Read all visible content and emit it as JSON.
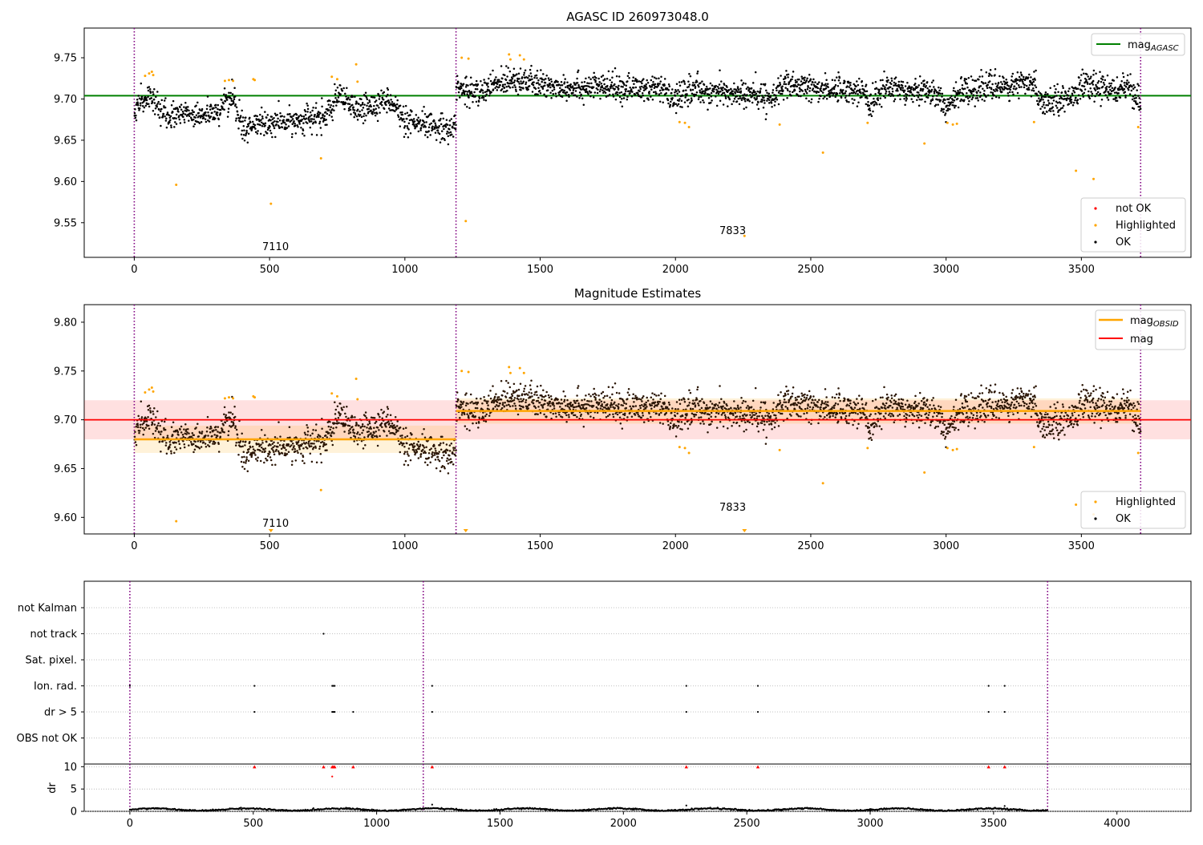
{
  "chart_data": [
    {
      "type": "scatter",
      "title": "AGASC ID 260973048.0",
      "xlabel": "",
      "ylabel": "",
      "xlim": [
        -185,
        3905
      ],
      "ylim": [
        9.508,
        9.786
      ],
      "xticks": [
        0,
        500,
        1000,
        1500,
        2000,
        2500,
        3000,
        3500,
        4000
      ],
      "yticks": [
        9.55,
        9.6,
        9.65,
        9.7,
        9.75
      ],
      "ytick_labels": [
        "9.55",
        "9.60",
        "9.65",
        "9.70",
        "9.75"
      ],
      "grid": false,
      "legends": [
        {
          "placement": "top-right",
          "entries": [
            {
              "label": "mag",
              "sub": "AGASC",
              "color": "#008000",
              "kind": "line"
            }
          ]
        },
        {
          "placement": "bottom-right",
          "entries": [
            {
              "label": "not OK",
              "color": "#ff0000",
              "kind": "dot"
            },
            {
              "label": "Highlighted",
              "color": "#ffa500",
              "kind": "dot"
            },
            {
              "label": "OK",
              "color": "#000000",
              "kind": "dot"
            }
          ]
        }
      ],
      "hlines": [
        {
          "name": "mag_AGASC",
          "y": 9.704,
          "x": [
            -185,
            3905
          ],
          "color": "#008000"
        }
      ],
      "vlines": [
        0,
        1189,
        3719
      ],
      "obsid_labels": [
        {
          "text": "7110",
          "x": 595,
          "y": 9.518
        },
        {
          "text": "7833",
          "x": 2440,
          "y": 9.535
        }
      ],
      "ok_segments": [
        {
          "x0": 0,
          "x1": 1189,
          "levels": [
            [
              0,
              9.688
            ],
            [
              60,
              9.705
            ],
            [
              100,
              9.68
            ],
            [
              300,
              9.682
            ],
            [
              360,
              9.705
            ],
            [
              400,
              9.665
            ],
            [
              700,
              9.678
            ],
            [
              760,
              9.702
            ],
            [
              820,
              9.686
            ],
            [
              950,
              9.7
            ],
            [
              1000,
              9.67
            ],
            [
              1189,
              9.665
            ]
          ],
          "noise": 0.008,
          "n": 950
        },
        {
          "x0": 1189,
          "x1": 3719,
          "levels": [
            [
              1189,
              9.715
            ],
            [
              1260,
              9.706
            ],
            [
              1400,
              9.726
            ],
            [
              1500,
              9.716
            ],
            [
              1950,
              9.712
            ],
            [
              1990,
              9.698
            ],
            [
              2050,
              9.712
            ],
            [
              2350,
              9.702
            ],
            [
              2400,
              9.715
            ],
            [
              2700,
              9.71
            ],
            [
              2720,
              9.688
            ],
            [
              2760,
              9.714
            ],
            [
              2950,
              9.71
            ],
            [
              3000,
              9.69
            ],
            [
              3070,
              9.712
            ],
            [
              3320,
              9.718
            ],
            [
              3360,
              9.696
            ],
            [
              3450,
              9.702
            ],
            [
              3500,
              9.715
            ],
            [
              3680,
              9.712
            ],
            [
              3719,
              9.69
            ]
          ],
          "noise": 0.008,
          "n": 2100
        }
      ],
      "highlighted": [
        [
          40,
          9.728
        ],
        [
          55,
          9.731
        ],
        [
          65,
          9.733
        ],
        [
          70,
          9.729
        ],
        [
          155,
          9.596
        ],
        [
          335,
          9.722
        ],
        [
          350,
          9.723
        ],
        [
          365,
          9.722
        ],
        [
          440,
          9.724
        ],
        [
          445,
          9.723
        ],
        [
          505,
          9.573
        ],
        [
          690,
          9.628
        ],
        [
          730,
          9.727
        ],
        [
          750,
          9.724
        ],
        [
          820,
          9.742
        ],
        [
          825,
          9.721
        ],
        [
          1210,
          9.75
        ],
        [
          1225,
          9.552
        ],
        [
          1235,
          9.749
        ],
        [
          1385,
          9.754
        ],
        [
          1390,
          9.748
        ],
        [
          1425,
          9.753
        ],
        [
          1440,
          9.748
        ],
        [
          2015,
          9.672
        ],
        [
          2035,
          9.671
        ],
        [
          2050,
          9.666
        ],
        [
          2255,
          9.534
        ],
        [
          2385,
          9.669
        ],
        [
          2545,
          9.635
        ],
        [
          2710,
          9.671
        ],
        [
          2920,
          9.646
        ],
        [
          3005,
          9.671
        ],
        [
          3025,
          9.669
        ],
        [
          3040,
          9.67
        ],
        [
          3325,
          9.672
        ],
        [
          3480,
          9.613
        ],
        [
          3545,
          9.603
        ],
        [
          3710,
          9.666
        ]
      ],
      "not_ok": []
    },
    {
      "type": "scatter",
      "title": "Magnitude Estimates",
      "xlabel": "",
      "ylabel": "",
      "xlim": [
        -185,
        3905
      ],
      "ylim": [
        9.583,
        9.818
      ],
      "xticks": [
        0,
        500,
        1000,
        1500,
        2000,
        2500,
        3000,
        3500,
        4000
      ],
      "yticks": [
        9.6,
        9.65,
        9.7,
        9.75,
        9.8
      ],
      "ytick_labels": [
        "9.60",
        "9.65",
        "9.70",
        "9.75",
        "9.80"
      ],
      "grid": false,
      "legends": [
        {
          "placement": "top-right",
          "entries": [
            {
              "label": "mag",
              "sub": "OBSID",
              "color": "#ffa500",
              "kind": "line"
            },
            {
              "label": "mag",
              "sub": "",
              "color": "#ff0000",
              "kind": "line"
            }
          ]
        },
        {
          "placement": "bottom-right",
          "entries": [
            {
              "label": "Highlighted",
              "color": "#ffa500",
              "kind": "dot"
            },
            {
              "label": "OK",
              "color": "#000000",
              "kind": "dot"
            }
          ]
        }
      ],
      "bands": [
        {
          "x0": -185,
          "x1": 3905,
          "y0": 9.68,
          "y1": 9.72,
          "color": "#ff0000",
          "opacity": 0.12
        },
        {
          "x0": 0,
          "x1": 1189,
          "y0": 9.666,
          "y1": 9.694,
          "color": "#ffa500",
          "opacity": 0.15
        },
        {
          "x0": 1189,
          "x1": 3719,
          "y0": 9.696,
          "y1": 9.722,
          "color": "#ffa500",
          "opacity": 0.15
        }
      ],
      "hlines": [
        {
          "name": "mag",
          "y": 9.7,
          "x": [
            -185,
            3905
          ],
          "color": "#ff0000"
        },
        {
          "name": "mag_OBSID_7110",
          "y": 9.68,
          "x": [
            0,
            1189
          ],
          "color": "#ffa500"
        },
        {
          "name": "mag_OBSID_7833",
          "y": 9.709,
          "x": [
            1189,
            3719
          ],
          "color": "#ffa500"
        }
      ],
      "vlines": [
        0,
        1189,
        3719
      ],
      "obsid_labels": [
        {
          "text": "7110",
          "x": 595,
          "y": 9.588
        },
        {
          "text": "7833",
          "x": 2440,
          "y": 9.607
        }
      ],
      "ok_segments": "same as first panel",
      "ok_color": "#2a1505",
      "highlighted": "same as first panel",
      "out_of_range_markers": [
        505,
        1225,
        2255
      ]
    },
    {
      "type": "scatter",
      "title": "",
      "xlabel": "",
      "ylabel": "",
      "xlim": [
        -185,
        4300
      ],
      "categories": [
        "not Kalman",
        "not track",
        "Sat. pixel.",
        "Ion. rad.",
        "dr > 5",
        "OBS not OK"
      ],
      "grid": true,
      "vlines": [
        0,
        1189,
        3719
      ],
      "flag_points": {
        "not Kalman": [],
        "not track": [
          785
        ],
        "Sat. pixel.": [],
        "Ion. rad.": [
          0,
          505,
          820,
          825,
          830,
          1225,
          2255,
          2545,
          3480,
          3545
        ],
        "dr > 5": [
          505,
          820,
          825,
          830,
          905,
          1225,
          2255,
          2545,
          3480,
          3545
        ],
        "OBS not OK": []
      }
    },
    {
      "type": "scatter",
      "title": "",
      "xlabel": "",
      "ylabel": "dr",
      "xlim": [
        -185,
        4300
      ],
      "ylim": [
        0,
        10.6
      ],
      "xticks": [
        0,
        500,
        1000,
        1500,
        2000,
        2500,
        3000,
        3500,
        4000
      ],
      "yticks": [
        0,
        5,
        10
      ],
      "grid": true,
      "vlines": [
        0,
        1189,
        3719
      ],
      "dr_spikes": [
        [
          505,
          10
        ],
        [
          785,
          10
        ],
        [
          820,
          10
        ],
        [
          825,
          10
        ],
        [
          830,
          10
        ],
        [
          905,
          10
        ],
        [
          1225,
          10
        ],
        [
          2255,
          10
        ],
        [
          2545,
          10
        ],
        [
          3480,
          10
        ],
        [
          3545,
          10
        ],
        [
          820,
          7.8
        ],
        [
          1225,
          1.5
        ],
        [
          2255,
          1.3
        ],
        [
          3545,
          1.2
        ]
      ],
      "dr_baseline": 0.4
    }
  ]
}
